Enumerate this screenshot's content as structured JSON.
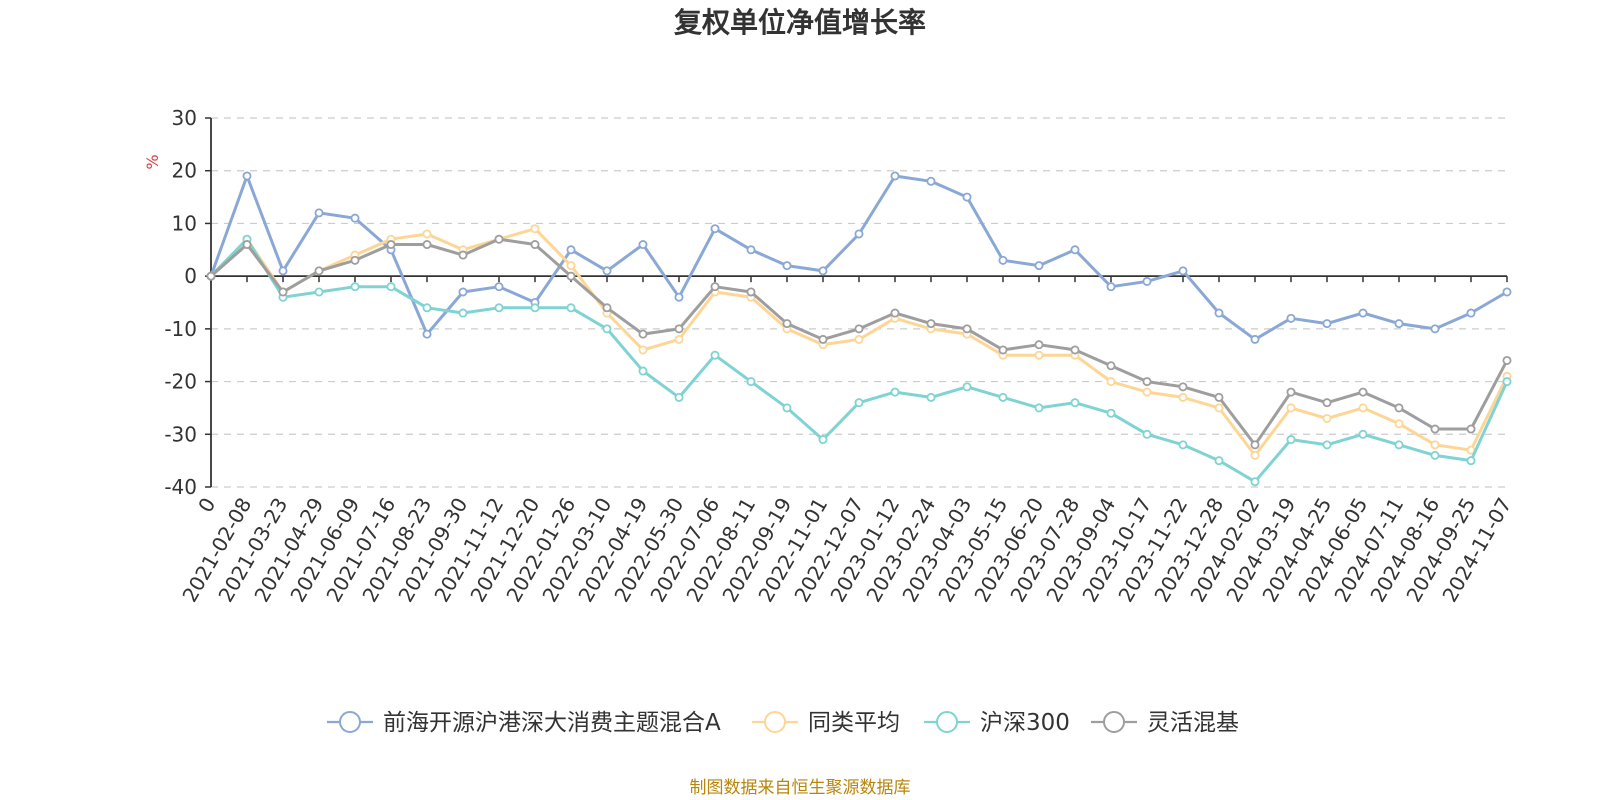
{
  "chart_data": {
    "type": "line",
    "title": "复权单位净值增长率",
    "ylabel": "%",
    "ylim": [
      -40,
      30
    ],
    "yticks": [
      30,
      20,
      10,
      0,
      -10,
      -20,
      -30,
      -40
    ],
    "grid": true,
    "legend_position": "bottom",
    "categories": [
      "0",
      "2021-02-08",
      "2021-03-23",
      "2021-04-29",
      "2021-06-09",
      "2021-07-16",
      "2021-08-23",
      "2021-09-30",
      "2021-11-12",
      "2021-12-20",
      "2022-01-26",
      "2022-03-10",
      "2022-04-19",
      "2022-05-30",
      "2022-07-06",
      "2022-08-11",
      "2022-09-19",
      "2022-11-01",
      "2022-12-07",
      "2023-01-12",
      "2023-02-24",
      "2023-04-03",
      "2023-05-15",
      "2023-06-20",
      "2023-07-28",
      "2023-09-04",
      "2023-10-17",
      "2023-11-22",
      "2023-12-28",
      "2024-02-02",
      "2024-03-19",
      "2024-04-25",
      "2024-06-05",
      "2024-07-11",
      "2024-08-16",
      "2024-09-25",
      "2024-11-07"
    ],
    "series": [
      {
        "name": "前海开源沪港深大消费主题混合A",
        "color": "#8aa8d6",
        "values": [
          0,
          19,
          1,
          12,
          11,
          5,
          -11,
          -3,
          -2,
          -5,
          5,
          1,
          6,
          -4,
          9,
          5,
          2,
          1,
          8,
          19,
          18,
          15,
          3,
          2,
          5,
          -2,
          -1,
          1,
          -7,
          -12,
          -8,
          -9,
          -7,
          -9,
          -10,
          -7,
          -3
        ]
      },
      {
        "name": "同类平均",
        "color": "#fdd696",
        "values": [
          0,
          7,
          -3,
          1,
          4,
          7,
          8,
          5,
          7,
          9,
          2,
          -7,
          -14,
          -12,
          -3,
          -4,
          -10,
          -13,
          -12,
          -8,
          -10,
          -11,
          -15,
          -15,
          -15,
          -20,
          -22,
          -23,
          -25,
          -34,
          -25,
          -27,
          -25,
          -28,
          -32,
          -33,
          -19
        ]
      },
      {
        "name": "沪深300",
        "color": "#7fd3d3",
        "values": [
          0,
          7,
          -4,
          -3,
          -2,
          -2,
          -6,
          -7,
          -6,
          -6,
          -6,
          -10,
          -18,
          -23,
          -15,
          -20,
          -25,
          -31,
          -24,
          -22,
          -23,
          -21,
          -23,
          -25,
          -24,
          -26,
          -30,
          -32,
          -35,
          -39,
          -31,
          -32,
          -30,
          -32,
          -34,
          -35,
          -20
        ]
      },
      {
        "name": "灵活混基",
        "color": "#9e9e9e",
        "values": [
          0,
          6,
          -3,
          1,
          3,
          6,
          6,
          4,
          7,
          6,
          0,
          -6,
          -11,
          -10,
          -2,
          -3,
          -9,
          -12,
          -10,
          -7,
          -9,
          -10,
          -14,
          -13,
          -14,
          -17,
          -20,
          -21,
          -23,
          -32,
          -22,
          -24,
          -22,
          -25,
          -29,
          -29,
          -16
        ]
      }
    ]
  },
  "source_text": "制图数据来自恒生聚源数据库"
}
